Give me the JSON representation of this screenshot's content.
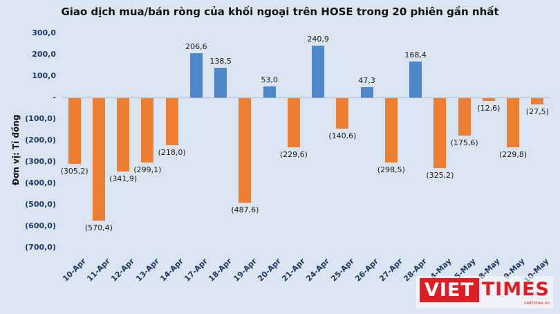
{
  "chart_data": {
    "type": "bar",
    "title": "Giao dịch mua/bán ròng của khối ngoại trên HOSE trong 20 phiên gần nhất",
    "ylabel": "Đơn vị: Tỉ đồng",
    "xlabel": "",
    "categories": [
      "10-Apr",
      "11-Apr",
      "12-Apr",
      "13-Apr",
      "14-Apr",
      "17-Apr",
      "18-Apr",
      "19-Apr",
      "20-Apr",
      "21-Apr",
      "24-Apr",
      "25-Apr",
      "26-Apr",
      "27-Apr",
      "28-Apr",
      "4-May",
      "5-May",
      "8-May",
      "9-May",
      "10-May"
    ],
    "values": [
      -305.2,
      -570.4,
      -341.9,
      -299.1,
      -218.0,
      206.6,
      138.5,
      -487.6,
      53.0,
      -229.6,
      240.9,
      -140.6,
      47.3,
      -298.5,
      168.4,
      -325.2,
      -175.6,
      -12.6,
      -229.8,
      -27.5
    ],
    "labels": [
      "(305,2)",
      "(570,4)",
      "(341,9)",
      "(299,1)",
      "(218,0)",
      "206,6",
      "138,5",
      "(487,6)",
      "53,0",
      "(229,6)",
      "240,9",
      "(140,6)",
      "47,3",
      "(298,5)",
      "168,4",
      "(325,2)",
      "(175,6)",
      "(12,6)",
      "(229,8)",
      "(27,5)"
    ],
    "yticks": [
      {
        "v": 300,
        "label": "300,0"
      },
      {
        "v": 200,
        "label": "200,0"
      },
      {
        "v": 100,
        "label": "100,0"
      },
      {
        "v": 0,
        "label": "-"
      },
      {
        "v": -100,
        "label": "(100,0)"
      },
      {
        "v": -200,
        "label": "(200,0)"
      },
      {
        "v": -300,
        "label": "(300,0)"
      },
      {
        "v": -400,
        "label": "(400,0)"
      },
      {
        "v": -500,
        "label": "(500,0)"
      },
      {
        "v": -600,
        "label": "(600,0)"
      },
      {
        "v": -700,
        "label": "(700,0)"
      }
    ],
    "ylim": [
      -700,
      300
    ],
    "grid": false,
    "legend_position": "none",
    "colors": {
      "positive": "#4d89c8",
      "negative": "#ed7d31",
      "background": "#dbe5f1",
      "axis_text": "#203864",
      "brand_red": "#e11d24"
    }
  },
  "logo": {
    "viet": "VIET",
    "times": "TIMES",
    "tagline": "viettimes.vn"
  }
}
